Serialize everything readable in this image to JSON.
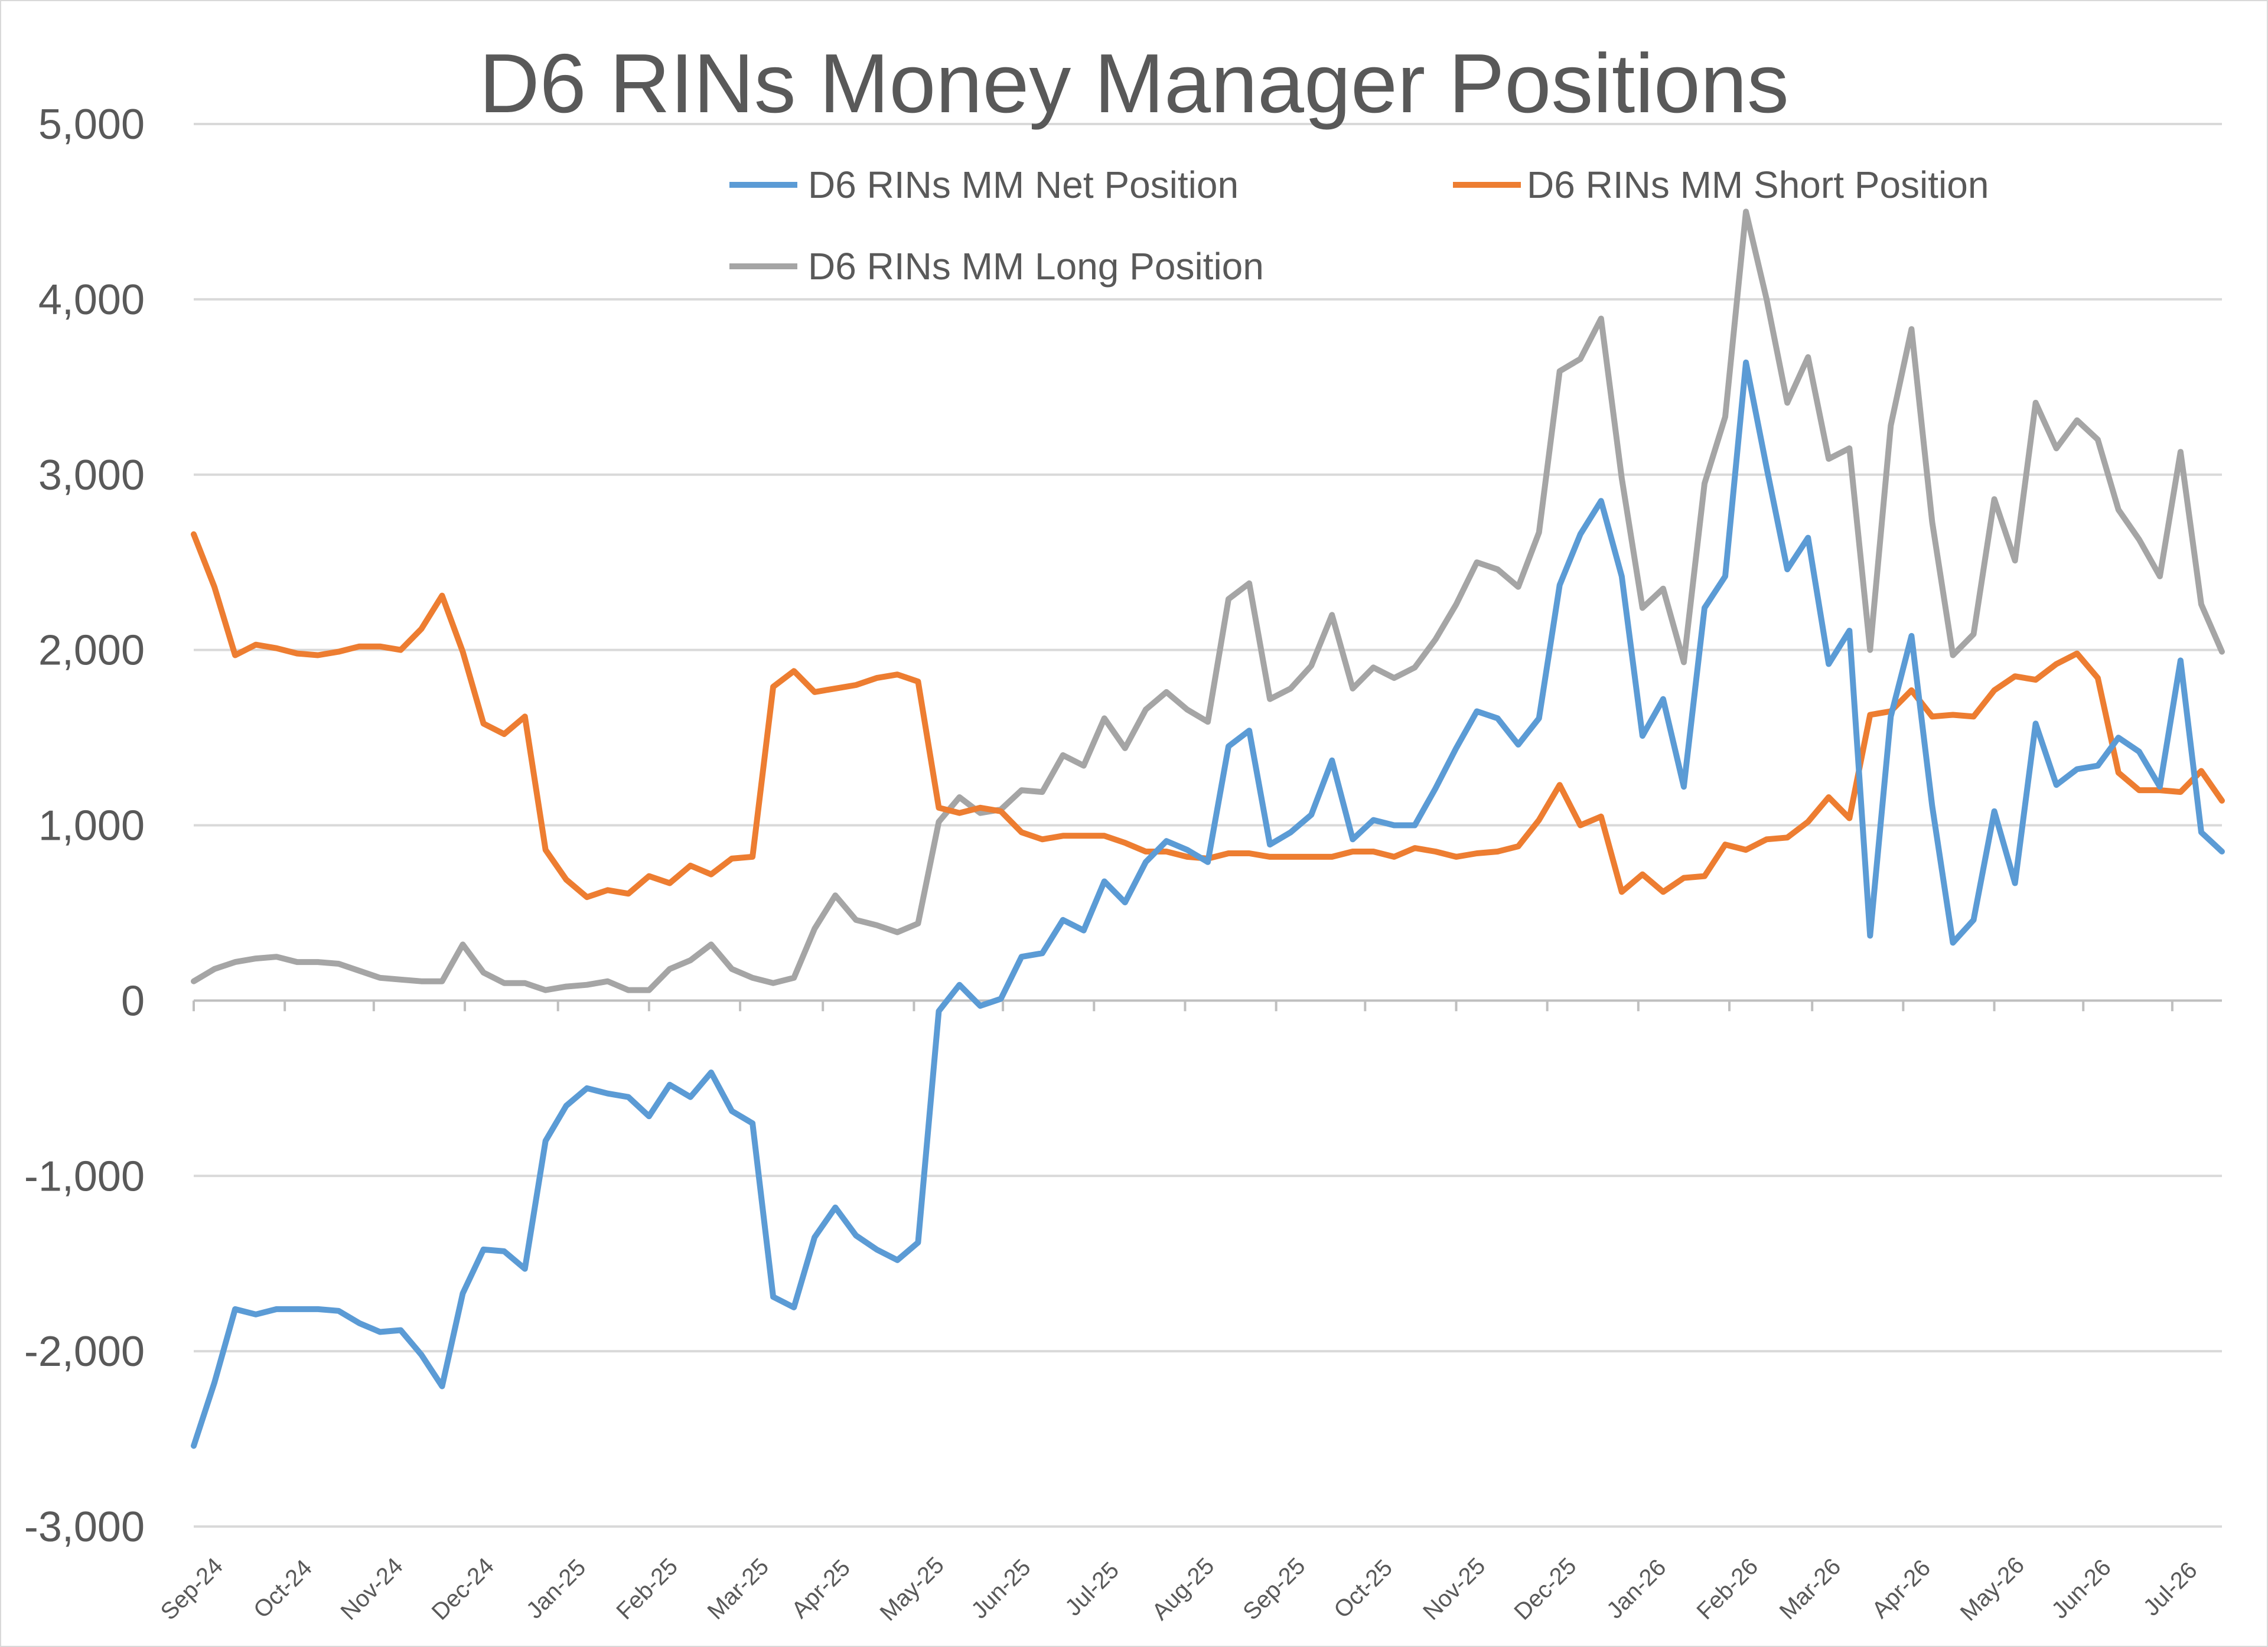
{
  "chart_data": {
    "type": "line",
    "title": "D6 RINs Money Manager Positions",
    "xlabel": "",
    "ylabel": "",
    "ylim": [
      -3000,
      5000
    ],
    "yticks": [
      -3000,
      -2000,
      -1000,
      0,
      1000,
      2000,
      3000,
      4000,
      5000
    ],
    "ytick_labels": [
      "-3,000",
      "-2,000",
      "-1,000",
      "0",
      "1,000",
      "2,000",
      "3,000",
      "4,000",
      "5,000"
    ],
    "x_tick_labels": [
      "Sep-24",
      "Oct-24",
      "Nov-24",
      "Dec-24",
      "Jan-25",
      "Feb-25",
      "Mar-25",
      "Apr-25",
      "May-25",
      "Jun-25",
      "Jul-25",
      "Aug-25",
      "Sep-25",
      "Oct-25",
      "Nov-25",
      "Dec-25",
      "Jan-26",
      "Feb-26",
      "Mar-26",
      "Apr-26",
      "May-26",
      "Jun-26",
      "Jul-26"
    ],
    "x_tick_week_index": [
      0,
      4.4,
      8.7,
      13.1,
      17.6,
      22,
      26.4,
      30.4,
      34.8,
      39.1,
      43.5,
      47.9,
      52.3,
      56.6,
      61,
      65.4,
      69.8,
      74.2,
      78.2,
      82.6,
      87,
      91.3,
      95.6
    ],
    "grid": true,
    "legend_position": "top",
    "colors": {
      "net": "#5b9bd5",
      "short": "#ed7d31",
      "long": "#a5a5a5"
    },
    "series": [
      {
        "name": "D6 RINs MM Net Position",
        "values": [
          -2540,
          -2180,
          -1760,
          -1790,
          -1760,
          -1760,
          -1760,
          -1770,
          -1840,
          -1890,
          -1880,
          -2020,
          -2200,
          -1670,
          -1420,
          -1430,
          -1530,
          -800,
          -600,
          -500,
          -530,
          -550,
          -660,
          -480,
          -550,
          -410,
          -630,
          -700,
          -1690,
          -1750,
          -1350,
          -1180,
          -1340,
          -1420,
          -1480,
          -1380,
          -60,
          90,
          -30,
          10,
          250,
          270,
          460,
          400,
          680,
          560,
          790,
          910,
          860,
          790,
          1450,
          1540,
          890,
          960,
          1060,
          1370,
          920,
          1030,
          1000,
          1000,
          1210,
          1440,
          1650,
          1610,
          1460,
          1610,
          2370,
          2660,
          2850,
          2420,
          1510,
          1720,
          1220,
          2240,
          2420,
          3640,
          3040,
          2460,
          2640,
          1920,
          2110,
          370,
          1620,
          2080,
          1110,
          330,
          460,
          1080,
          670,
          1580,
          1230,
          1320,
          1340,
          1500,
          1420,
          1220,
          1940,
          960,
          850
        ]
      },
      {
        "name": "D6 RINs MM Short Position",
        "values": [
          2660,
          2360,
          1970,
          2030,
          2010,
          1980,
          1970,
          1990,
          2020,
          2020,
          2000,
          2120,
          2310,
          1990,
          1580,
          1520,
          1620,
          860,
          690,
          590,
          630,
          610,
          710,
          670,
          770,
          720,
          810,
          820,
          1790,
          1880,
          1760,
          1780,
          1800,
          1840,
          1860,
          1820,
          1100,
          1070,
          1100,
          1080,
          960,
          920,
          940,
          940,
          940,
          900,
          850,
          850,
          820,
          810,
          840,
          840,
          820,
          820,
          820,
          820,
          850,
          850,
          820,
          870,
          850,
          820,
          840,
          850,
          880,
          1030,
          1230,
          1000,
          1050,
          620,
          720,
          620,
          700,
          710,
          890,
          860,
          920,
          930,
          1020,
          1160,
          1040,
          1630,
          1650,
          1770,
          1620,
          1630,
          1620,
          1770,
          1850,
          1830,
          1920,
          1980,
          1840,
          1300,
          1200,
          1200,
          1190,
          1310,
          1140
        ]
      },
      {
        "name": "D6 RINs MM Long Position",
        "values": [
          110,
          180,
          220,
          240,
          250,
          220,
          220,
          210,
          170,
          130,
          120,
          110,
          110,
          320,
          160,
          100,
          100,
          60,
          80,
          90,
          110,
          60,
          60,
          180,
          230,
          320,
          180,
          130,
          100,
          130,
          410,
          600,
          460,
          430,
          390,
          440,
          1020,
          1160,
          1070,
          1090,
          1200,
          1190,
          1400,
          1340,
          1610,
          1440,
          1660,
          1760,
          1660,
          1590,
          2290,
          2380,
          1720,
          1780,
          1910,
          2200,
          1780,
          1900,
          1840,
          1900,
          2060,
          2260,
          2500,
          2460,
          2360,
          2670,
          3590,
          3660,
          3890,
          2980,
          2240,
          2350,
          1930,
          2950,
          3330,
          4500,
          4000,
          3410,
          3670,
          3090,
          3150,
          2000,
          3280,
          3830,
          2730,
          1970,
          2090,
          2860,
          2510,
          3410,
          3150,
          3310,
          3200,
          2800,
          2630,
          2420,
          3130,
          2260,
          1990
        ]
      }
    ]
  }
}
